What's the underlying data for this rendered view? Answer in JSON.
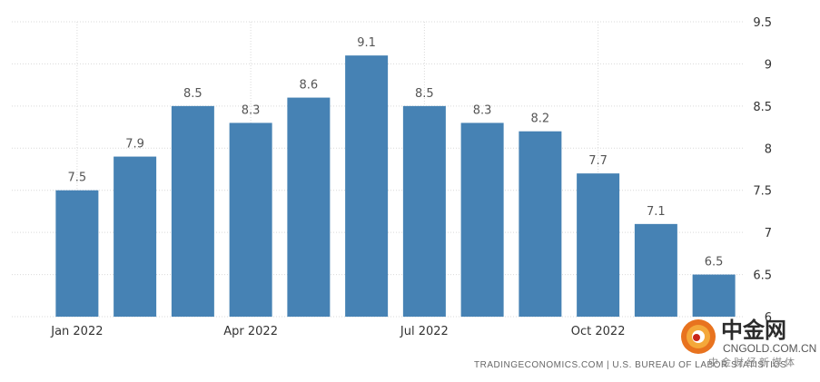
{
  "chart_data": {
    "type": "bar",
    "categories": [
      "Jan 2022",
      "Feb 2022",
      "Mar 2022",
      "Apr 2022",
      "May 2022",
      "Jun 2022",
      "Jul 2022",
      "Aug 2022",
      "Sep 2022",
      "Oct 2022",
      "Nov 2022",
      "Dec 2022"
    ],
    "values": [
      7.5,
      7.9,
      8.5,
      8.3,
      8.6,
      9.1,
      8.5,
      8.3,
      8.2,
      7.7,
      7.1,
      6.5
    ],
    "data_labels": [
      "7.5",
      "7.9",
      "8.5",
      "8.3",
      "8.6",
      "9.1",
      "8.5",
      "8.3",
      "8.2",
      "7.7",
      "7.1",
      "6.5"
    ],
    "x_tick_labels": [
      {
        "category": "Jan 2022",
        "label": "Jan 2022"
      },
      {
        "category": "Apr 2022",
        "label": "Apr 2022"
      },
      {
        "category": "Jul 2022",
        "label": "Jul 2022"
      },
      {
        "category": "Oct 2022",
        "label": "Oct 2022"
      }
    ],
    "y_ticks": [
      6,
      6.5,
      7,
      7.5,
      8,
      8.5,
      9,
      9.5
    ],
    "y_tick_labels": [
      "6",
      "6.5",
      "7",
      "7.5",
      "8",
      "8.5",
      "9",
      "9.5"
    ],
    "ylim": [
      6,
      9.5
    ],
    "y_axis_side": "right",
    "grid": true,
    "bar_color": "#4682b4",
    "grid_color": "#d9d9d9",
    "title": "",
    "xlabel": "",
    "ylabel": ""
  },
  "source": "TRADINGECONOMICS.COM  |  U.S. BUREAU OF LABOR STATISTICS",
  "watermark": {
    "title": "中金网",
    "domain": "CNGOLD.COM.CN",
    "subtitle": "中金财经新媒体"
  }
}
